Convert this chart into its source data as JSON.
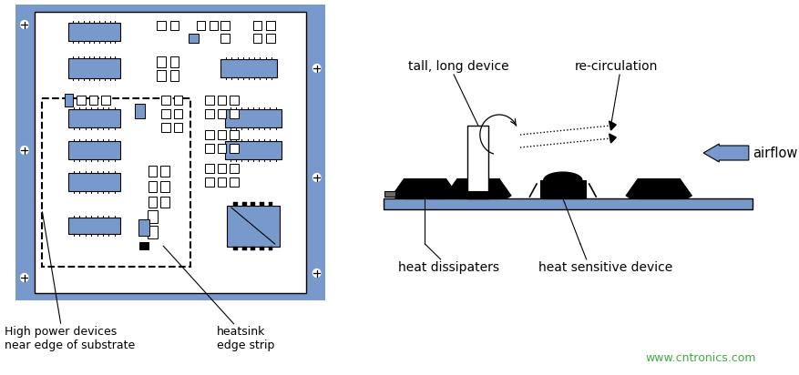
{
  "bg_color": "#ffffff",
  "frame_color": "#7799cc",
  "comp_blue": "#7799cc",
  "text_color": "#000000",
  "watermark_color": "#44aa44",
  "label_high_power": "High power devices\nnear edge of substrate",
  "label_heatsink": "heatsink\nedge strip",
  "label_tall": "tall, long device",
  "label_recirc": "re-circulation",
  "label_airflow": "airflow",
  "label_heat_diss": "heat dissipaters",
  "label_heat_sens": "heat sensitive device",
  "watermark": "www.cntronics.com"
}
